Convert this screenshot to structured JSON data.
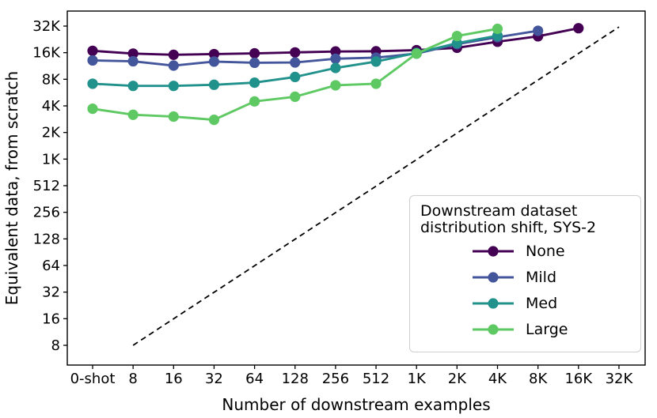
{
  "chart_data": {
    "type": "line",
    "title": "",
    "xlabel": "Number of downstream examples",
    "ylabel": "Equivalent data, from scratch",
    "x_scale": "log2-categorical",
    "y_scale": "log2",
    "x_categories": [
      "0-shot",
      "8",
      "16",
      "32",
      "64",
      "128",
      "256",
      "512",
      "1K",
      "2K",
      "4K",
      "8K",
      "16K",
      "32K"
    ],
    "y_tick_labels_bottom_up": [
      "8",
      "16",
      "32",
      "64",
      "128",
      "256",
      "512",
      "1K",
      "2K",
      "4K",
      "8K",
      "16K",
      "32K"
    ],
    "y_range": [
      8,
      32768
    ],
    "grid": "off",
    "series": [
      {
        "name": "None",
        "color": "#440154",
        "values": [
          17200,
          16000,
          15500,
          15800,
          16100,
          16500,
          16900,
          17000,
          17500,
          18600,
          21800,
          25100,
          31000
        ]
      },
      {
        "name": "Mild",
        "color": "#44569b",
        "values": [
          13400,
          13100,
          11700,
          13000,
          12600,
          12700,
          14000,
          14400,
          16000,
          20500,
          24500,
          29000
        ]
      },
      {
        "name": "Med",
        "color": "#21918c",
        "values": [
          7300,
          6900,
          6900,
          7100,
          7500,
          8700,
          11000,
          13000,
          16300,
          21000,
          25500
        ]
      },
      {
        "name": "Large",
        "color": "#5ec962",
        "values": [
          3800,
          3250,
          3100,
          2850,
          4600,
          5200,
          7000,
          7300,
          16000,
          25300,
          30500
        ]
      }
    ],
    "reference_line": {
      "meaning": "y = x identity (equivalent data = number of examples)",
      "style": "dashed",
      "color": "#000000",
      "from": {
        "x": "8",
        "y": 8
      },
      "to": {
        "x": "32K",
        "y": 32000
      }
    },
    "legend": {
      "title_lines": [
        "Downstream dataset",
        "distribution shift, SYS-2"
      ],
      "position": "lower right",
      "entries": [
        "None",
        "Mild",
        "Med",
        "Large"
      ]
    }
  }
}
